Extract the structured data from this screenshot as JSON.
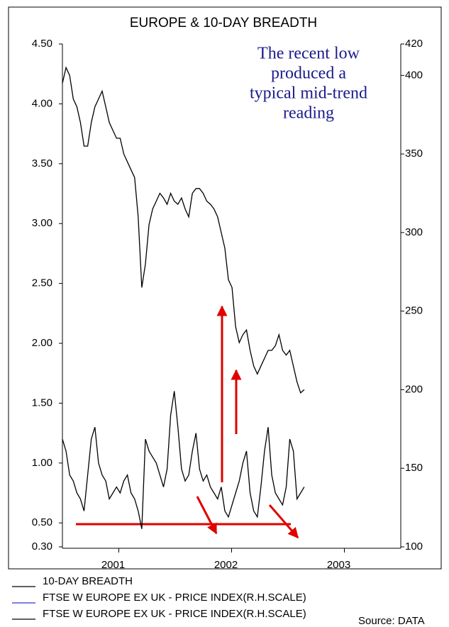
{
  "chart_data": {
    "type": "line",
    "title": "EUROPE & 10-DAY BREADTH",
    "annotation": [
      "The recent low",
      "produced a",
      "typical mid-trend",
      "reading"
    ],
    "source": "Source: DATA",
    "x": [
      2001,
      2001.032,
      2001.064,
      2001.096,
      2001.128,
      2001.16,
      2001.192,
      2001.224,
      2001.256,
      2001.288,
      2001.32,
      2001.352,
      2001.384,
      2001.416,
      2001.448,
      2001.48,
      2001.512,
      2001.544,
      2001.576,
      2001.608,
      2001.64,
      2001.672,
      2001.704,
      2001.736,
      2001.768,
      2001.8,
      2001.832,
      2001.864,
      2001.896,
      2001.928,
      2001.96,
      2001.992,
      2002.024,
      2002.056,
      2002.088,
      2002.12,
      2002.152,
      2002.184,
      2002.216,
      2002.248,
      2002.28,
      2002.312,
      2002.344,
      2002.376,
      2002.408,
      2002.44,
      2002.472,
      2002.504,
      2002.536,
      2002.568,
      2002.6,
      2002.632,
      2002.664,
      2002.696,
      2002.728,
      2002.76,
      2002.792,
      2002.824,
      2002.856,
      2002.888,
      2002.92,
      2002.952,
      2002.984,
      2003.016,
      2003.048,
      2003.08,
      2003.112,
      2003.144
    ],
    "series": [
      {
        "name": "10-DAY BREADTH",
        "color": "#000000",
        "axis": "y",
        "values": [
          1.2,
          1.1,
          0.9,
          0.85,
          0.75,
          0.7,
          0.6,
          0.9,
          1.2,
          1.3,
          1.0,
          0.9,
          0.85,
          0.7,
          0.75,
          0.8,
          0.75,
          0.85,
          0.9,
          0.75,
          0.7,
          0.6,
          0.45,
          1.2,
          1.1,
          1.05,
          1.0,
          0.9,
          0.8,
          0.95,
          1.4,
          1.6,
          1.3,
          0.95,
          0.85,
          0.9,
          1.1,
          1.25,
          0.95,
          0.85,
          0.9,
          0.8,
          0.75,
          0.7,
          0.8,
          0.6,
          0.55,
          0.65,
          0.75,
          0.85,
          1.0,
          1.1,
          0.75,
          0.6,
          0.55,
          0.8,
          1.1,
          1.3,
          0.9,
          0.75,
          0.7,
          0.65,
          0.8,
          1.2,
          1.1,
          0.7,
          0.75,
          0.8
        ]
      },
      {
        "name": "FTSE W EUROPE EX UK - PRICE INDEX(R.H.SCALE)",
        "color": "#000000",
        "axis": "y2",
        "values": [
          395,
          405,
          400,
          385,
          380,
          370,
          355,
          355,
          370,
          380,
          385,
          390,
          380,
          370,
          365,
          360,
          360,
          350,
          345,
          340,
          335,
          310,
          265,
          280,
          305,
          315,
          320,
          325,
          322,
          318,
          325,
          320,
          318,
          322,
          315,
          310,
          325,
          328,
          328,
          325,
          320,
          318,
          315,
          310,
          300,
          290,
          270,
          265,
          240,
          230,
          235,
          238,
          225,
          215,
          210,
          215,
          220,
          225,
          225,
          228,
          235,
          225,
          222,
          225,
          215,
          205,
          198,
          200
        ]
      }
    ],
    "legend": [
      {
        "name": "10-DAY BREADTH",
        "color": "#000000"
      },
      {
        "name": "FTSE W EUROPE EX UK - PRICE INDEX(R.H.SCALE)",
        "color": "#3333cc"
      },
      {
        "name": "FTSE W EUROPE EX UK - PRICE INDEX(R.H.SCALE)",
        "color": "#000000"
      }
    ],
    "xlim": [
      2001,
      2004
    ],
    "xticks": [
      {
        "value": 2001.5,
        "label": "2001"
      },
      {
        "value": 2002.5,
        "label": "2002"
      },
      {
        "value": 2003.5,
        "label": "2003"
      }
    ],
    "ylim": [
      0.3,
      4.5
    ],
    "yticks": [
      {
        "value": 0.3,
        "label": "0.30"
      },
      {
        "value": 0.5,
        "label": "0.50"
      },
      {
        "value": 1,
        "label": "1.00"
      },
      {
        "value": 1.5,
        "label": "1.50"
      },
      {
        "value": 2,
        "label": "2.00"
      },
      {
        "value": 2.5,
        "label": "2.50"
      },
      {
        "value": 3,
        "label": "3.00"
      },
      {
        "value": 3.5,
        "label": "3.50"
      },
      {
        "value": 4,
        "label": "4.00"
      },
      {
        "value": 4.5,
        "label": "4.50"
      }
    ],
    "y2lim": [
      100,
      420
    ],
    "y2ticks": [
      100,
      150,
      200,
      250,
      300,
      350,
      400,
      420
    ]
  }
}
